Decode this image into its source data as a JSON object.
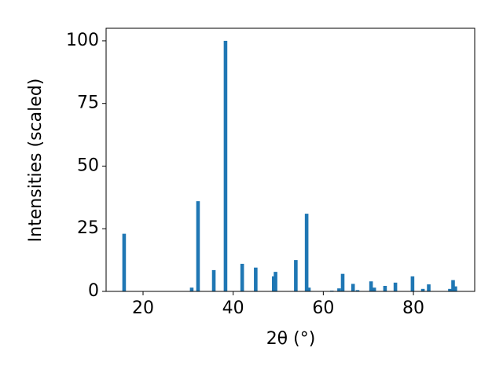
{
  "chart_data": {
    "type": "bar",
    "xlabel": "2θ (°)",
    "ylabel": "Intensities (scaled)",
    "x": [
      15.8,
      30.8,
      32.2,
      35.7,
      38.3,
      42.0,
      45.0,
      49.0,
      49.4,
      53.9,
      56.3,
      56.8,
      61.9,
      63.5,
      64.3,
      66.6,
      67.6,
      70.6,
      71.3,
      73.7,
      76.0,
      79.8,
      82.1,
      83.4,
      88.1,
      88.8,
      89.3
    ],
    "values": [
      23,
      1.5,
      36,
      8.5,
      100,
      11,
      9.5,
      6,
      7.8,
      12.5,
      31,
      1.5,
      0.3,
      1.2,
      7,
      3,
      0.5,
      4,
      1.5,
      2.2,
      3.5,
      6,
      1,
      2.8,
      1,
      4.5,
      2
    ],
    "color": "#1f77b4",
    "xlim": [
      11.8,
      93.6
    ],
    "ylim": [
      0,
      105
    ],
    "xticks": [
      20,
      40,
      60,
      80
    ],
    "yticks": [
      0,
      25,
      50,
      75,
      100
    ]
  }
}
